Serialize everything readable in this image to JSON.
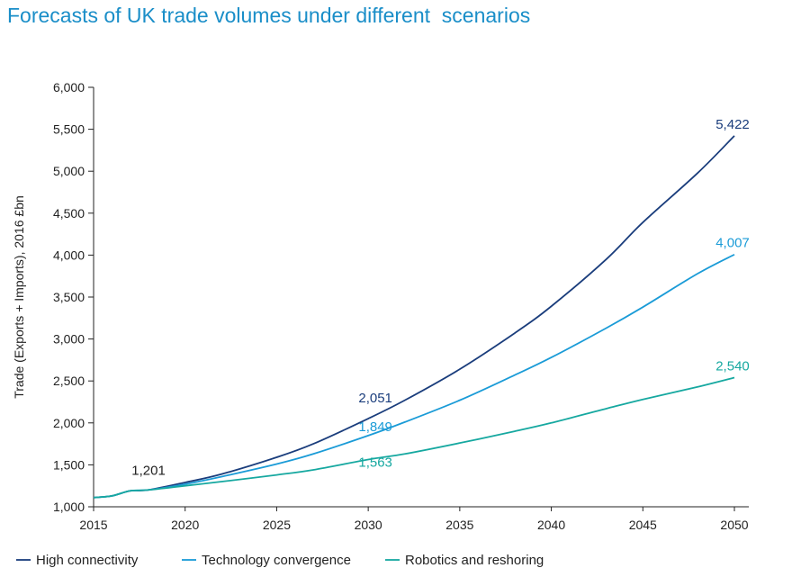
{
  "chart_data": {
    "type": "line",
    "title": "Forecasts of UK trade volumes under different  scenarios",
    "ylabel": "Trade (Exports + Imports), 2016 £bn",
    "xlabel": "",
    "xlim": [
      2015,
      2050
    ],
    "ylim": [
      1000,
      6000
    ],
    "xticks": [
      2015,
      2020,
      2025,
      2030,
      2035,
      2040,
      2045,
      2050
    ],
    "yticks": [
      1000,
      1500,
      2000,
      2500,
      3000,
      3500,
      4000,
      4500,
      5000,
      5500,
      6000
    ],
    "xtick_labels": [
      "2015",
      "2020",
      "2025",
      "2030",
      "2035",
      "2040",
      "2045",
      "2050"
    ],
    "ytick_labels": [
      "1,000",
      "1,500",
      "2,000",
      "2,500",
      "3,000",
      "3,500",
      "4,000",
      "4,500",
      "5,000",
      "5,500",
      "6,000"
    ],
    "grid": false,
    "legend_position": "bottom",
    "series": [
      {
        "name": "High connectivity",
        "color": "#1a3d7c",
        "x": [
          2015,
          2016,
          2017,
          2018,
          2020,
          2022,
          2025,
          2027,
          2030,
          2032,
          2035,
          2038,
          2040,
          2043,
          2045,
          2048,
          2050
        ],
        "values": [
          1110,
          1130,
          1190,
          1201,
          1290,
          1390,
          1590,
          1750,
          2051,
          2270,
          2640,
          3070,
          3390,
          3950,
          4390,
          4980,
          5422
        ]
      },
      {
        "name": "Technology convergence",
        "color": "#1a9bd7",
        "x": [
          2015,
          2016,
          2017,
          2018,
          2020,
          2022,
          2025,
          2027,
          2030,
          2032,
          2035,
          2038,
          2040,
          2043,
          2045,
          2048,
          2050
        ],
        "values": [
          1110,
          1130,
          1190,
          1201,
          1270,
          1360,
          1510,
          1630,
          1849,
          2010,
          2270,
          2570,
          2780,
          3130,
          3380,
          3780,
          4007
        ]
      },
      {
        "name": "Robotics and reshoring",
        "color": "#16a8a0",
        "x": [
          2015,
          2016,
          2017,
          2018,
          2020,
          2022,
          2025,
          2027,
          2030,
          2032,
          2035,
          2038,
          2040,
          2043,
          2045,
          2048,
          2050
        ],
        "values": [
          1110,
          1130,
          1190,
          1201,
          1250,
          1300,
          1380,
          1440,
          1563,
          1630,
          1760,
          1900,
          2000,
          2170,
          2280,
          2430,
          2540
        ]
      }
    ],
    "annotations": [
      {
        "text": "1,201",
        "x": 2018,
        "y": 1201,
        "series": 0
      },
      {
        "text": "2,051",
        "x": 2030,
        "y": 2051,
        "series": 0
      },
      {
        "text": "1,849",
        "x": 2030,
        "y": 1849,
        "series": 1
      },
      {
        "text": "1,563",
        "x": 2030,
        "y": 1563,
        "series": 2
      },
      {
        "text": "5,422",
        "x": 2050,
        "y": 5422,
        "series": 0
      },
      {
        "text": "4,007",
        "x": 2050,
        "y": 4007,
        "series": 1
      },
      {
        "text": "2,540",
        "x": 2050,
        "y": 2540,
        "series": 2
      }
    ]
  },
  "colors": {
    "title": "#1a8ec8",
    "axis": "#222222",
    "annotation_neutral": "#222222"
  }
}
